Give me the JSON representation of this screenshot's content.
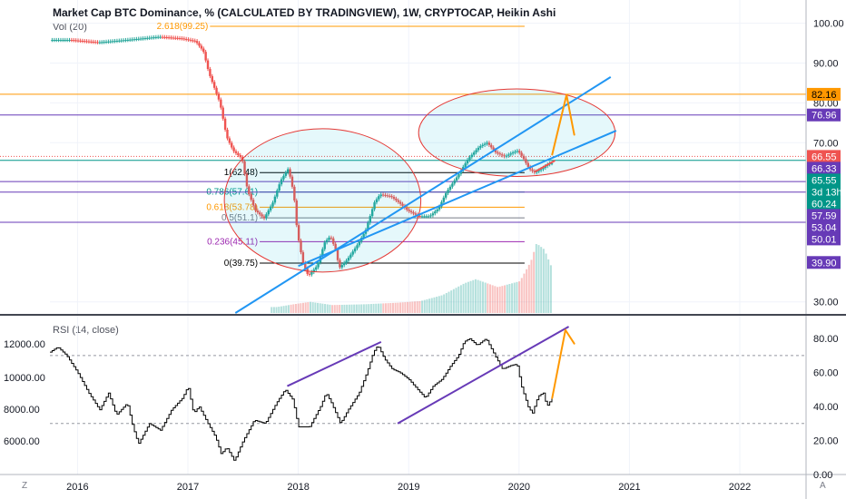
{
  "header": {
    "title": "Market Cap BTC Dominance, % (CALCULATED BY TRADINGVIEW), 1W, CRYPTOCAP, Heikin Ashi",
    "volume_label": "Vol (20)"
  },
  "rsi_panel": {
    "title": "RSI (14, close)"
  },
  "corner_buttons": {
    "left": "Z",
    "right": "A"
  },
  "colors": {
    "up": "#26a69a",
    "down": "#ef5350",
    "channel": "#2196f3",
    "fib_orange": "#ff9800",
    "fib_purple": "#9c27b0",
    "fib_teal": "#009688",
    "rsi_line": "#000000",
    "rsi_trend": "#673ab7",
    "arrow": "#ff9800"
  },
  "chart_data": [
    {
      "type": "candlestick",
      "title": "Market Cap BTC Dominance, % (CALCULATED BY TRADINGVIEW), 1W, CRYPTOCAP, Heikin Ashi",
      "x_ticks": [
        "2016",
        "2017",
        "2018",
        "2019",
        "2020",
        "2021",
        "2022"
      ],
      "xlim": [
        2015.75,
        2022.6
      ],
      "y_ticks": [
        "100.00",
        "90.00",
        "80.00",
        "70.00",
        "30.00"
      ],
      "ylim": [
        27.2,
        102.2
      ],
      "price_points": [
        [
          2015.75,
          95.8
        ],
        [
          2015.95,
          95.8
        ],
        [
          2016.2,
          95.2
        ],
        [
          2016.45,
          95.8
        ],
        [
          2016.75,
          96.6
        ],
        [
          2016.95,
          96.2
        ],
        [
          2017.08,
          95.5
        ],
        [
          2017.15,
          93.0
        ],
        [
          2017.2,
          87.5
        ],
        [
          2017.3,
          80.0
        ],
        [
          2017.36,
          71.5
        ],
        [
          2017.42,
          68.0
        ],
        [
          2017.5,
          66.0
        ],
        [
          2017.55,
          58.0
        ],
        [
          2017.62,
          53.0
        ],
        [
          2017.7,
          51.0
        ],
        [
          2017.78,
          55.0
        ],
        [
          2017.85,
          60.5
        ],
        [
          2017.92,
          63.5
        ],
        [
          2017.97,
          57.0
        ],
        [
          2018.0,
          47.5
        ],
        [
          2018.05,
          40.0
        ],
        [
          2018.1,
          36.5
        ],
        [
          2018.18,
          39.0
        ],
        [
          2018.25,
          45.0
        ],
        [
          2018.3,
          46.5
        ],
        [
          2018.35,
          43.0
        ],
        [
          2018.38,
          38.5
        ],
        [
          2018.45,
          40.5
        ],
        [
          2018.55,
          44.5
        ],
        [
          2018.62,
          48.0
        ],
        [
          2018.7,
          55.0
        ],
        [
          2018.75,
          57.0
        ],
        [
          2018.85,
          56.5
        ],
        [
          2018.92,
          55.0
        ],
        [
          2019.0,
          53.0
        ],
        [
          2019.1,
          51.5
        ],
        [
          2019.2,
          51.5
        ],
        [
          2019.28,
          53.5
        ],
        [
          2019.35,
          57.5
        ],
        [
          2019.45,
          61.5
        ],
        [
          2019.55,
          66.0
        ],
        [
          2019.65,
          69.0
        ],
        [
          2019.72,
          70.0
        ],
        [
          2019.8,
          67.5
        ],
        [
          2019.88,
          66.5
        ],
        [
          2019.95,
          67.5
        ],
        [
          2020.0,
          68.0
        ],
        [
          2020.05,
          66.0
        ],
        [
          2020.1,
          63.5
        ],
        [
          2020.15,
          62.5
        ],
        [
          2020.22,
          63.5
        ],
        [
          2020.28,
          64.8
        ]
      ],
      "volume_points": [
        [
          2017.8,
          1.5
        ],
        [
          2017.95,
          2.2
        ],
        [
          2018.1,
          2.8
        ],
        [
          2018.3,
          2.0
        ],
        [
          2018.6,
          2.2
        ],
        [
          2018.9,
          2.6
        ],
        [
          2019.1,
          3.0
        ],
        [
          2019.3,
          4.5
        ],
        [
          2019.5,
          7.5
        ],
        [
          2019.6,
          8.5
        ],
        [
          2019.8,
          6.5
        ],
        [
          2020.0,
          8.0
        ],
        [
          2020.1,
          13.0
        ],
        [
          2020.15,
          17.5
        ],
        [
          2020.22,
          16.0
        ],
        [
          2020.28,
          12.0
        ]
      ],
      "fib_levels": [
        {
          "label": "2.618(99.25)",
          "value": 99.25,
          "color": "#ff9800"
        },
        {
          "label": "1(62.48)",
          "value": 62.48,
          "color": "#000000"
        },
        {
          "label": "0.786(57.61)",
          "value": 57.61,
          "color": "#009688"
        },
        {
          "label": "0.618(53.78)",
          "value": 53.78,
          "color": "#ff9800"
        },
        {
          "label": "0.5(51.1)",
          "value": 51.1,
          "color": "#787b86"
        },
        {
          "label": "0.236(45.11)",
          "value": 45.11,
          "color": "#9c27b0"
        },
        {
          "label": "0(39.75)",
          "value": 39.75,
          "color": "#000000"
        }
      ],
      "horizontal_lines": [
        {
          "value": 82.16,
          "color": "#ff9800"
        },
        {
          "value": 76.96,
          "color": "#673ab7"
        },
        {
          "value": 65.55,
          "color": "#009688"
        },
        {
          "value": 60.24,
          "color": "#673ab7"
        },
        {
          "value": 57.59,
          "color": "#673ab7"
        },
        {
          "value": 50.01,
          "color": "#673ab7"
        }
      ],
      "price_labels": [
        {
          "text": "82.16",
          "value": 82.16,
          "bg": "#ff9800",
          "fg": "#000000"
        },
        {
          "text": "76.96",
          "value": 76.96,
          "bg": "#673ab7",
          "fg": "#ffffff"
        },
        {
          "text": "66.55",
          "value": 66.55,
          "bg": "#ef5350",
          "fg": "#ffffff"
        },
        {
          "text": "66.33",
          "value": 66.33,
          "bg": "#673ab7",
          "fg": "#ffffff"
        },
        {
          "text": "65.55",
          "value": 65.55,
          "bg": "#009688",
          "fg": "#ffffff"
        },
        {
          "text": "3d 13h",
          "value": 62.0,
          "bg": "#009688",
          "fg": "#ffffff"
        },
        {
          "text": "60.24",
          "value": 60.24,
          "bg": "#009688",
          "fg": "#ffffff"
        },
        {
          "text": "57.59",
          "value": 57.59,
          "bg": "#673ab7",
          "fg": "#ffffff"
        },
        {
          "text": "53.04",
          "value": 53.04,
          "bg": "#673ab7",
          "fg": "#ffffff"
        },
        {
          "text": "50.01",
          "value": 50.01,
          "bg": "#673ab7",
          "fg": "#ffffff"
        },
        {
          "text": "39.90",
          "value": 39.9,
          "bg": "#673ab7",
          "fg": "#ffffff"
        }
      ],
      "channel": [
        {
          "x1": 2017.43,
          "y1": 27.2,
          "x2": 2020.83,
          "y2": 86.5
        },
        {
          "x1": 2018.0,
          "y1": 39.0,
          "x2": 2020.88,
          "y2": 73.0
        }
      ],
      "circles": [
        {
          "cx": 2018.22,
          "cy": 55.5,
          "rx_years": 0.89,
          "ry_value": 18.0
        },
        {
          "cx": 2019.98,
          "cy": 72.5,
          "rx_years": 0.89,
          "ry_value": 11.0
        }
      ],
      "arrows": [
        {
          "x1": 2020.3,
          "y1": 67.0,
          "x2": 2020.43,
          "y2": 82.0,
          "color": "#ff9800"
        },
        {
          "x1": 2020.43,
          "y1": 82.0,
          "x2": 2020.5,
          "y2": 72.0,
          "color": "#ff9800"
        },
        {
          "x1": 2020.15,
          "y1": 62.8,
          "x2": 2020.32,
          "y2": 65.4,
          "color": "#ef5350"
        }
      ]
    },
    {
      "type": "line",
      "title": "RSI (14, close)",
      "x_ticks": [
        "2016",
        "2017",
        "2018",
        "2019",
        "2020",
        "2021",
        "2022"
      ],
      "xlim": [
        2015.75,
        2022.6
      ],
      "right_y_ticks": [
        "80.00",
        "60.00",
        "40.00",
        "20.00",
        "0.00"
      ],
      "right_ylim": [
        0,
        95
      ],
      "left_y_ticks": [
        "12000.00",
        "10000.00",
        "8000.00",
        "6000.00"
      ],
      "guide_levels": [
        70,
        30
      ],
      "series": [
        {
          "values_xy": [
            [
              2015.75,
              72
            ],
            [
              2015.82,
              75
            ],
            [
              2015.9,
              70
            ],
            [
              2016.0,
              60
            ],
            [
              2016.1,
              48
            ],
            [
              2016.2,
              38
            ],
            [
              2016.28,
              48
            ],
            [
              2016.35,
              35
            ],
            [
              2016.45,
              42
            ],
            [
              2016.5,
              28
            ],
            [
              2016.55,
              18
            ],
            [
              2016.65,
              30
            ],
            [
              2016.75,
              26
            ],
            [
              2016.85,
              38
            ],
            [
              2016.95,
              45
            ],
            [
              2017.0,
              52
            ],
            [
              2017.05,
              36
            ],
            [
              2017.1,
              40
            ],
            [
              2017.18,
              30
            ],
            [
              2017.25,
              22
            ],
            [
              2017.3,
              12
            ],
            [
              2017.35,
              16
            ],
            [
              2017.42,
              8
            ],
            [
              2017.5,
              20
            ],
            [
              2017.6,
              32
            ],
            [
              2017.7,
              30
            ],
            [
              2017.8,
              42
            ],
            [
              2017.88,
              50
            ],
            [
              2017.95,
              44
            ],
            [
              2018.0,
              28
            ],
            [
              2018.1,
              28
            ],
            [
              2018.2,
              40
            ],
            [
              2018.25,
              48
            ],
            [
              2018.3,
              42
            ],
            [
              2018.38,
              30
            ],
            [
              2018.45,
              38
            ],
            [
              2018.55,
              48
            ],
            [
              2018.62,
              60
            ],
            [
              2018.68,
              72
            ],
            [
              2018.72,
              76
            ],
            [
              2018.78,
              68
            ],
            [
              2018.85,
              62
            ],
            [
              2018.92,
              60
            ],
            [
              2019.0,
              56
            ],
            [
              2019.08,
              50
            ],
            [
              2019.15,
              45
            ],
            [
              2019.22,
              52
            ],
            [
              2019.3,
              56
            ],
            [
              2019.38,
              64
            ],
            [
              2019.45,
              70
            ],
            [
              2019.5,
              78
            ],
            [
              2019.55,
              80
            ],
            [
              2019.62,
              76
            ],
            [
              2019.7,
              80
            ],
            [
              2019.78,
              70
            ],
            [
              2019.85,
              62
            ],
            [
              2019.92,
              64
            ],
            [
              2019.98,
              65
            ],
            [
              2020.02,
              52
            ],
            [
              2020.08,
              40
            ],
            [
              2020.12,
              36
            ],
            [
              2020.17,
              46
            ],
            [
              2020.22,
              48
            ],
            [
              2020.25,
              40
            ],
            [
              2020.3,
              45
            ]
          ]
        }
      ],
      "trendlines": [
        {
          "x1": 2017.9,
          "y1": 52,
          "x2": 2018.75,
          "y2": 78,
          "color": "#673ab7"
        },
        {
          "x1": 2018.9,
          "y1": 30,
          "x2": 2020.45,
          "y2": 87,
          "color": "#673ab7"
        }
      ],
      "arrows": [
        {
          "x1": 2020.3,
          "y1": 45,
          "x2": 2020.42,
          "y2": 85,
          "color": "#ff9800"
        },
        {
          "x1": 2020.42,
          "y1": 85,
          "x2": 2020.5,
          "y2": 77,
          "color": "#ff9800"
        }
      ]
    }
  ]
}
